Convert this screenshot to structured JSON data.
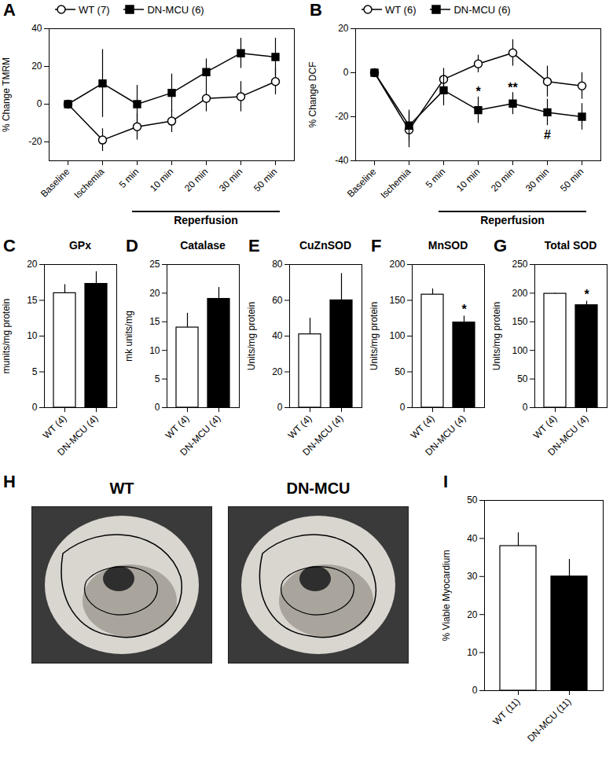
{
  "chart_data": [
    {
      "panel": "A",
      "type": "line",
      "ylabel": "% Change TMRM",
      "categories": [
        "Baseline",
        "Ischemia",
        "5 min",
        "10 min",
        "20 min",
        "30 min",
        "50 min"
      ],
      "ylim": [
        -30,
        40
      ],
      "yticks": [
        -20,
        0,
        20,
        40
      ],
      "legend": "top-left",
      "series": [
        {
          "name": "WT (7)",
          "color": "#000000",
          "marker": "open_circle",
          "values": [
            0,
            -19,
            -12,
            -9,
            3,
            4,
            12
          ],
          "error": [
            0,
            6,
            7,
            6,
            7,
            8,
            7
          ]
        },
        {
          "name": "DN-MCU (6)",
          "color": "#000000",
          "marker": "filled_square",
          "values": [
            0,
            11,
            0,
            6,
            17,
            27,
            25
          ],
          "error": [
            0,
            18,
            10,
            10,
            7,
            8,
            10
          ]
        }
      ],
      "annotations": [
        {
          "text": "Reperfusion",
          "from": "5 min",
          "to": "50 min"
        }
      ]
    },
    {
      "panel": "B",
      "type": "line",
      "ylabel": "% Change DCF",
      "categories": [
        "Baseline",
        "Ischemia",
        "5 min",
        "10 min",
        "20 min",
        "30 min",
        "50 min"
      ],
      "ylim": [
        -40,
        20
      ],
      "yticks": [
        -40,
        -20,
        0,
        20
      ],
      "legend": "top-left",
      "series": [
        {
          "name": "WT (6)",
          "color": "#000000",
          "marker": "open_circle",
          "values": [
            0,
            -26,
            -3,
            4,
            9,
            -4,
            -6
          ],
          "error": [
            0,
            8,
            5,
            4,
            6,
            7,
            6
          ]
        },
        {
          "name": "DN-MCU (6)",
          "color": "#000000",
          "marker": "filled_square",
          "values": [
            0,
            -24,
            -8,
            -17,
            -14,
            -18,
            -20
          ],
          "error": [
            0,
            7,
            7,
            6,
            5,
            6,
            6
          ]
        }
      ],
      "annotations": [
        {
          "text": "Reperfusion",
          "from": "5 min",
          "to": "50 min"
        },
        {
          "text": "*",
          "x": "10 min",
          "series": "DN-MCU (6)",
          "position": "above"
        },
        {
          "text": "**",
          "x": "20 min",
          "series": "DN-MCU (6)",
          "position": "above"
        },
        {
          "text": "#",
          "x": "30 min",
          "series": "DN-MCU (6)",
          "position": "below"
        }
      ]
    },
    {
      "panel": "C",
      "type": "bar",
      "title": "GPx",
      "ylabel": "munits/mg protein",
      "categories": [
        "WT (4)",
        "DN-MCU (4)"
      ],
      "values": [
        16,
        17.3
      ],
      "error": [
        1.2,
        1.7
      ],
      "colors": [
        "#ffffff",
        "#000000"
      ],
      "ylim": [
        0,
        20
      ],
      "yticks": [
        0,
        5,
        10,
        15,
        20
      ]
    },
    {
      "panel": "D",
      "type": "bar",
      "title": "Catalase",
      "ylabel": "mk units/mg",
      "categories": [
        "WT (4)",
        "DN-MCU (4)"
      ],
      "values": [
        14,
        19
      ],
      "error": [
        2.5,
        2
      ],
      "colors": [
        "#ffffff",
        "#000000"
      ],
      "ylim": [
        0,
        25
      ],
      "yticks": [
        0,
        5,
        10,
        15,
        20,
        25
      ]
    },
    {
      "panel": "E",
      "type": "bar",
      "title": "CuZnSOD",
      "ylabel": "Units/mg protein",
      "categories": [
        "WT (4)",
        "DN-MCU (4)"
      ],
      "values": [
        41,
        60
      ],
      "error": [
        9,
        15
      ],
      "colors": [
        "#ffffff",
        "#000000"
      ],
      "ylim": [
        0,
        80
      ],
      "yticks": [
        0,
        20,
        40,
        60,
        80
      ]
    },
    {
      "panel": "F",
      "type": "bar",
      "title": "MnSOD",
      "ylabel": "Units/mg protein",
      "categories": [
        "WT (4)",
        "DN-MCU (4)"
      ],
      "values": [
        158,
        119
      ],
      "error": [
        8,
        9
      ],
      "colors": [
        "#ffffff",
        "#000000"
      ],
      "ylim": [
        0,
        200
      ],
      "yticks": [
        0,
        50,
        100,
        150,
        200
      ],
      "annotations": [
        {
          "text": "*",
          "x": "DN-MCU (4)"
        }
      ]
    },
    {
      "panel": "G",
      "type": "bar",
      "title": "Total SOD",
      "ylabel": "Units/mg protein",
      "categories": [
        "WT (4)",
        "DN-MCU (4)"
      ],
      "values": [
        199,
        179
      ],
      "error": [
        1,
        7
      ],
      "colors": [
        "#ffffff",
        "#000000"
      ],
      "ylim": [
        0,
        250
      ],
      "yticks": [
        0,
        50,
        100,
        150,
        200,
        250
      ],
      "annotations": [
        {
          "text": "*",
          "x": "DN-MCU (4)"
        }
      ]
    },
    {
      "panel": "H",
      "type": "image",
      "labels": [
        "WT",
        "DN-MCU"
      ]
    },
    {
      "panel": "I",
      "type": "bar",
      "ylabel": "% Viable Myocardium",
      "categories": [
        "WT (11)",
        "DN-MCU (11)"
      ],
      "values": [
        38,
        30
      ],
      "error": [
        3.5,
        4.5
      ],
      "colors": [
        "#ffffff",
        "#000000"
      ],
      "ylim": [
        0,
        50
      ],
      "yticks": [
        0,
        10,
        20,
        30,
        40,
        50
      ]
    }
  ]
}
